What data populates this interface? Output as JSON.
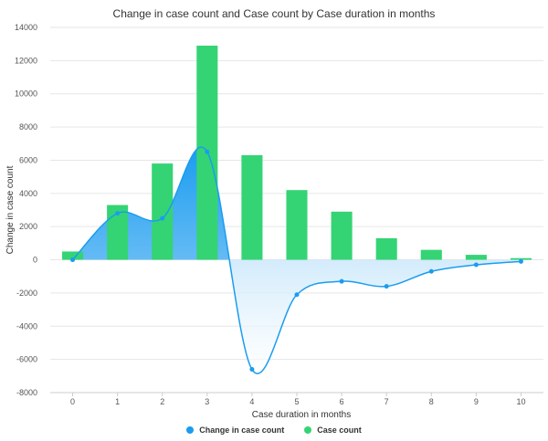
{
  "chart_data": {
    "type": "bar",
    "title": "Change in case count and Case count by Case duration in months",
    "xlabel": "Case duration in months",
    "ylabel": "Change in case count",
    "categories": [
      "0",
      "1",
      "2",
      "3",
      "4",
      "5",
      "6",
      "7",
      "8",
      "9",
      "10"
    ],
    "ylim": [
      -8000,
      14000
    ],
    "yticks": [
      "14000",
      "12000",
      "10000",
      "8000",
      "6000",
      "4000",
      "2000",
      "0",
      "-2000",
      "-4000",
      "-6000",
      "-8000"
    ],
    "grid": true,
    "legend_position": "bottom-center",
    "series": [
      {
        "name": "Change in case count",
        "type": "area-spline",
        "color": "#1a9cf0",
        "values": [
          0,
          2800,
          2500,
          6500,
          -6600,
          -2100,
          -1300,
          -1600,
          -700,
          -300,
          -100
        ]
      },
      {
        "name": "Case count",
        "type": "bar",
        "color": "#34d474",
        "values": [
          500,
          3300,
          5800,
          12900,
          6300,
          4200,
          2900,
          1300,
          600,
          300,
          100
        ]
      }
    ]
  }
}
